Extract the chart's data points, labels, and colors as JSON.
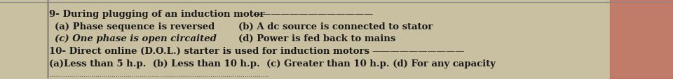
{
  "bg_color": "#c8c0a0",
  "left_color": "#d4cbb0",
  "right_color": "#c07060",
  "border_color": "#888888",
  "text_color": "#1a1a1a",
  "line1": "9- During plugging of an induction motor ———————",
  "line2a": " (a) Phase sequence is reversed",
  "line2b": "      (b) A dc source is connected to stator",
  "line3a": " (c) One phase is open circaited",
  "line3b": "      (d) Power is fed back to mains",
  "line4": "10- Direct online (D.O.L.) starter is used for induction motors —————",
  "line5": "(a)Less than 5 h.p.  (b) Less than 10 h.p.  (c) Greater than 10 h.p. (d) For any capacity",
  "dotted_line": ".............................................................................................................",
  "fontsize": 9.5,
  "bold_items": [
    "9-",
    "10-",
    "(a)",
    "(b)",
    "(c)",
    "(d)"
  ]
}
